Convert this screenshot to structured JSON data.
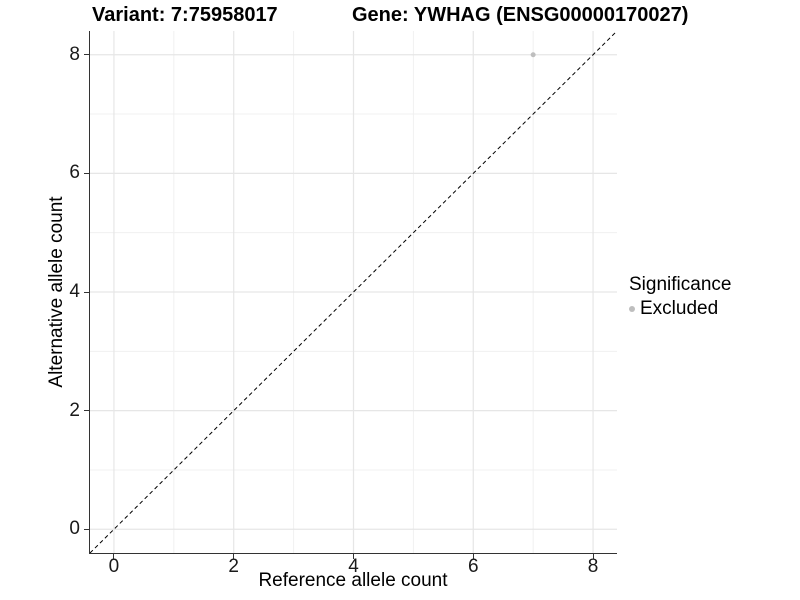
{
  "chart_data": {
    "type": "scatter",
    "title_left": "Variant: 7:75958017",
    "title_right": "Gene: YWHAG (ENSG00000170027)",
    "xlabel": "Reference allele count",
    "ylabel": "Alternative allele count",
    "xlim": [
      -0.4,
      8.4
    ],
    "ylim": [
      -0.4,
      8.4
    ],
    "x_ticks": [
      0,
      2,
      4,
      6,
      8
    ],
    "x_minor_ticks": [
      1,
      3,
      5,
      7
    ],
    "y_ticks": [
      0,
      2,
      4,
      6,
      8
    ],
    "y_minor_ticks": [
      1,
      3,
      5,
      7
    ],
    "grid": {
      "on": true,
      "major_color": "#e6e6e6",
      "minor_color": "#f0f0f0"
    },
    "identity_line": {
      "style": "dashed",
      "color": "#000000",
      "x1": -0.4,
      "y1": -0.4,
      "x2": 8.4,
      "y2": 8.4
    },
    "series": [
      {
        "name": "Excluded",
        "color": "#bebebe",
        "point_radius": 2.5,
        "points": [
          {
            "x": 7,
            "y": 8
          }
        ]
      }
    ],
    "legend": {
      "title": "Significance",
      "position": "right",
      "items": [
        {
          "label": "Excluded",
          "color": "#bebebe"
        }
      ]
    },
    "axis_color": "#333333",
    "tick_label_color": "#1a1a1a"
  }
}
